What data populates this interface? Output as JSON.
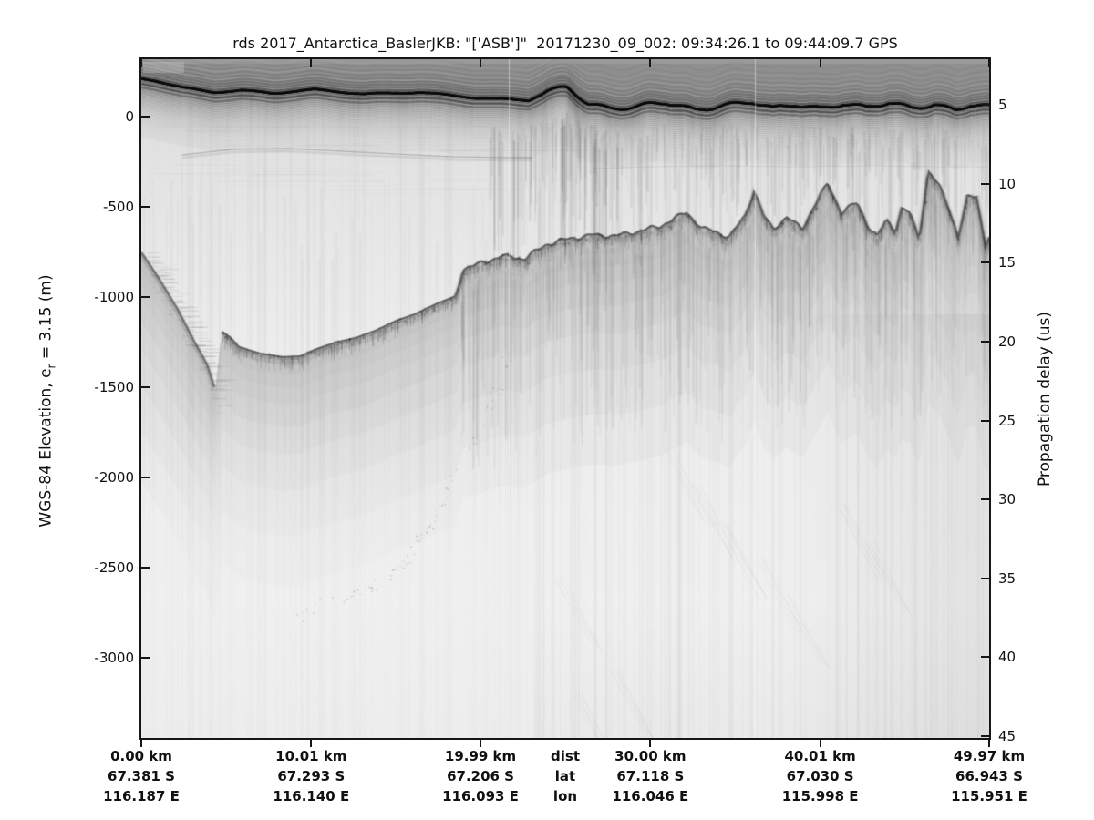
{
  "title": "rds 2017_Antarctica_BaslerJKB: \"['ASB']\"  20171230_09_002: 09:34:26.1 to 09:44:09.7 GPS",
  "left_axis": {
    "label_prefix": "WGS-84 Elevation, e",
    "label_sub": "r",
    "label_suffix": " = 3.15 (m)",
    "tick_values": [
      0,
      -500,
      -1000,
      -1500,
      -2000,
      -2500,
      -3000
    ],
    "tick_labels": [
      "0",
      "-500",
      "-1000",
      "-1500",
      "-2000",
      "-2500",
      "-3000"
    ]
  },
  "right_axis": {
    "label": "Propagation delay (us)",
    "tick_values": [
      5,
      10,
      15,
      20,
      25,
      30,
      35,
      40,
      45
    ],
    "tick_labels": [
      "5",
      "10",
      "15",
      "20",
      "25",
      "30",
      "35",
      "40",
      "45"
    ]
  },
  "bottom_axis": {
    "header": {
      "dist": "dist",
      "lat": "lat",
      "lon": "lon"
    },
    "columns": [
      {
        "km": 0.0,
        "dist": "0.00 km",
        "lat": "67.381 S",
        "lon": "116.187 E"
      },
      {
        "km": 10.01,
        "dist": "10.01 km",
        "lat": "67.293 S",
        "lon": "116.140 E"
      },
      {
        "km": 19.99,
        "dist": "19.99 km",
        "lat": "67.206 S",
        "lon": "116.093 E"
      },
      {
        "km": 30.0,
        "dist": "30.00 km",
        "lat": "67.118 S",
        "lon": "116.046 E"
      },
      {
        "km": 40.01,
        "dist": "40.01 km",
        "lat": "67.030 S",
        "lon": "115.998 E"
      },
      {
        "km": 49.97,
        "dist": "49.97 km",
        "lat": "66.943 S",
        "lon": "115.951 E"
      }
    ]
  },
  "chart_data": {
    "type": "heatmap",
    "title": "rds 2017_Antarctica_BaslerJKB: \"['ASB']\"  20171230_09_002: 09:34:26.1 to 09:44:09.7 GPS",
    "description": "Grayscale ice-penetrating radargram (radio echo sounding). Dark band near top = ice surface return, fuzzy dark horizon = bed echo, faint diagonal band = deep off-nadir scattering.",
    "distance_axis": {
      "range": [
        0,
        49.97
      ],
      "ticks_km": [
        0.0,
        10.01,
        19.99,
        30.0,
        40.01,
        49.97
      ]
    },
    "elevation_axis": {
      "label": "WGS-84 Elevation, e_r = 3.15 (m)",
      "range": [
        -3444,
        318
      ],
      "ticks": [
        0,
        -500,
        -1000,
        -1500,
        -2000,
        -2500,
        -3000
      ]
    },
    "delay_axis": {
      "label": "Propagation delay (us)",
      "range": [
        2.11,
        45.11
      ],
      "ticks": [
        5,
        10,
        15,
        20,
        25,
        30,
        35,
        40,
        45
      ]
    },
    "series": [
      {
        "name": "surface_elevation_m",
        "x_km": [
          0,
          2.5,
          5,
          7.5,
          10,
          12.5,
          15,
          17.5,
          20,
          22.5,
          25,
          27.5,
          30,
          32.5,
          35,
          37.5,
          40,
          42.5,
          45,
          47.5,
          49.97
        ],
        "values": [
          212,
          162,
          141,
          136,
          152,
          131,
          131,
          121,
          106,
          91,
          157,
          51,
          56,
          45,
          71,
          45,
          51,
          51,
          61,
          40,
          51
        ]
      },
      {
        "name": "bed_elevation_m",
        "x_km": [
          0,
          2.5,
          5,
          7.5,
          10,
          12.5,
          15,
          17.5,
          20,
          22.5,
          25,
          27.5,
          30,
          32.5,
          35,
          37.5,
          40,
          42.5,
          45,
          47.5,
          49.97
        ],
        "values": [
          -753,
          -1116,
          -1212,
          -1323,
          -1303,
          -1232,
          -1131,
          -1035,
          -813,
          -788,
          -682,
          -667,
          -646,
          -626,
          -657,
          -611,
          -475,
          -581,
          -525,
          -490,
          -677
        ]
      }
    ],
    "colors": {
      "background": "#ededed",
      "above_surface_band": "#8f8f8f",
      "ink": "#161616"
    },
    "render": {
      "surface": [
        [
          0,
          21
        ],
        [
          15,
          23
        ],
        [
          45,
          31
        ],
        [
          80,
          36
        ],
        [
          110,
          34
        ],
        [
          145,
          37
        ],
        [
          190,
          33
        ],
        [
          245,
          38
        ],
        [
          305,
          36
        ],
        [
          365,
          42
        ],
        [
          425,
          45
        ],
        [
          445,
          35
        ],
        [
          467,
          32
        ],
        [
          490,
          47
        ],
        [
          513,
          53
        ],
        [
          545,
          52
        ],
        [
          575,
          48
        ],
        [
          607,
          55
        ],
        [
          635,
          50
        ],
        [
          670,
          47
        ],
        [
          693,
          55
        ],
        [
          717,
          49
        ],
        [
          745,
          53
        ],
        [
          770,
          48
        ],
        [
          795,
          54
        ],
        [
          820,
          48
        ],
        [
          845,
          53
        ],
        [
          870,
          48
        ],
        [
          893,
          56
        ],
        [
          910,
          50
        ],
        [
          930,
          53
        ]
      ],
      "slope": [
        [
          0,
          212
        ],
        [
          20,
          242
        ],
        [
          40,
          275
        ],
        [
          57,
          308
        ],
        [
          72,
          335
        ],
        [
          81,
          363
        ]
      ],
      "bed": [
        [
          88,
          299
        ],
        [
          97,
          305
        ],
        [
          107,
          316
        ],
        [
          130,
          323
        ],
        [
          155,
          327
        ],
        [
          175,
          326
        ],
        [
          190,
          319
        ],
        [
          213,
          311
        ],
        [
          235,
          306
        ],
        [
          257,
          298
        ],
        [
          280,
          287
        ],
        [
          300,
          280
        ],
        [
          323,
          269
        ],
        [
          345,
          260
        ],
        [
          353,
          230
        ],
        [
          370,
          225
        ],
        [
          395,
          216
        ],
        [
          420,
          219
        ],
        [
          445,
          203
        ],
        [
          470,
          197
        ],
        [
          495,
          193
        ],
        [
          520,
          194
        ],
        [
          545,
          189
        ],
        [
          570,
          183
        ],
        [
          598,
          168
        ],
        [
          615,
          186
        ],
        [
          630,
          189
        ],
        [
          645,
          196
        ],
        [
          662,
          172
        ],
        [
          672,
          145
        ],
        [
          683,
          173
        ],
        [
          693,
          186
        ],
        [
          708,
          174
        ],
        [
          725,
          186
        ],
        [
          738,
          162
        ],
        [
          753,
          136
        ],
        [
          768,
          169
        ],
        [
          785,
          157
        ],
        [
          797,
          183
        ],
        [
          807,
          196
        ],
        [
          817,
          176
        ],
        [
          827,
          188
        ],
        [
          834,
          165
        ],
        [
          843,
          169
        ],
        [
          853,
          196
        ],
        [
          863,
          124
        ],
        [
          875,
          139
        ],
        [
          886,
          163
        ],
        [
          896,
          196
        ],
        [
          906,
          152
        ],
        [
          916,
          149
        ],
        [
          926,
          205
        ],
        [
          930,
          195
        ]
      ],
      "layer1": [
        [
          45,
          105
        ],
        [
          100,
          99
        ],
        [
          160,
          98
        ],
        [
          220,
          101
        ],
        [
          280,
          104
        ],
        [
          340,
          107
        ],
        [
          400,
          108
        ],
        [
          430,
          108
        ]
      ],
      "layer2": [
        [
          495,
          120
        ],
        [
          560,
          118
        ],
        [
          640,
          117
        ],
        [
          720,
          118
        ],
        [
          800,
          117
        ],
        [
          880,
          118
        ],
        [
          930,
          118
        ]
      ],
      "scatter_arc": [
        [
          405,
          315
        ],
        [
          390,
          358
        ],
        [
          375,
          402
        ],
        [
          345,
          455
        ],
        [
          325,
          495
        ],
        [
          307,
          525
        ],
        [
          293,
          547
        ],
        [
          275,
          562
        ],
        [
          250,
          582
        ],
        [
          223,
          590
        ],
        [
          195,
          595
        ],
        [
          172,
          615
        ]
      ],
      "seams": [
        403,
        673
      ],
      "comet_tails": [
        [
          600,
          460
        ],
        [
          630,
          500
        ],
        [
          660,
          540
        ],
        [
          700,
          580
        ],
        [
          730,
          620
        ],
        [
          540,
          700
        ],
        [
          500,
          730
        ],
        [
          480,
          600
        ],
        [
          790,
          520
        ],
        [
          820,
          560
        ]
      ]
    }
  }
}
